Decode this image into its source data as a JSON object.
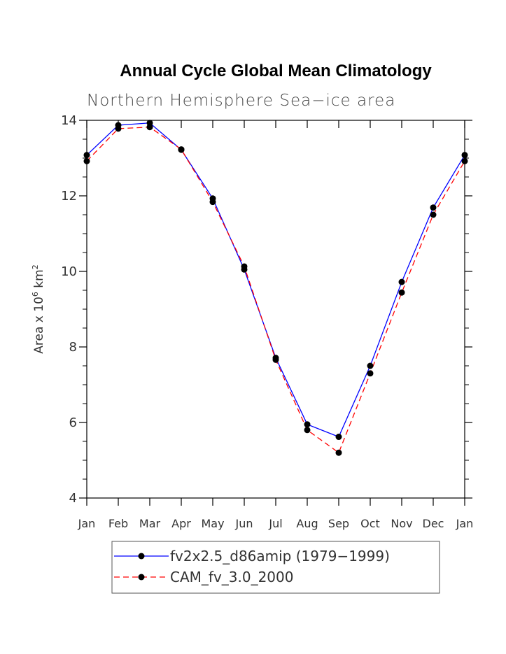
{
  "chart_data": {
    "type": "line",
    "title": "Annual Cycle Global Mean Climatology",
    "subtitle": "Northern Hemisphere Sea−ice area",
    "ylabel": {
      "prefix": "Area x 10",
      "exp1": "6",
      "mid": " km",
      "exp2": "2"
    },
    "xlabel": "",
    "categories": [
      "Jan",
      "Feb",
      "Mar",
      "Apr",
      "May",
      "Jun",
      "Jul",
      "Aug",
      "Sep",
      "Oct",
      "Nov",
      "Dec",
      "Jan"
    ],
    "ylim": [
      4,
      14
    ],
    "yticks": [
      4,
      6,
      8,
      10,
      12,
      14
    ],
    "yminor_step": 0.5,
    "series": [
      {
        "name": "fv2x2.5_d86amip (1979−1999)",
        "color": "#0000ff",
        "dash": "solid",
        "values": [
          13.08,
          13.87,
          13.93,
          13.22,
          11.93,
          10.05,
          7.71,
          5.95,
          5.62,
          7.5,
          9.72,
          11.69,
          13.08
        ]
      },
      {
        "name": "CAM_fv_3.0_2000",
        "color": "#ff0000",
        "dash": "dashed",
        "values": [
          12.92,
          13.78,
          13.82,
          13.23,
          11.84,
          10.13,
          7.66,
          5.8,
          5.2,
          7.3,
          9.44,
          11.5,
          12.92
        ]
      }
    ],
    "marker_color": "#000000",
    "legend_position": "bottom"
  }
}
